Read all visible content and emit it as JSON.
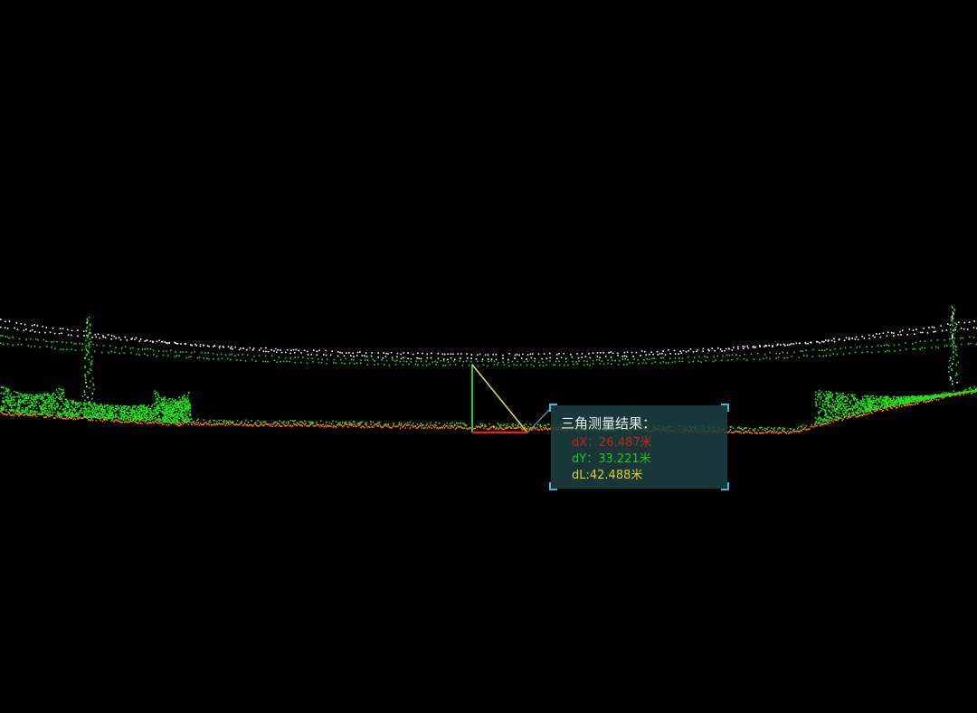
{
  "measurement": {
    "title": "三角测量结果：",
    "dx": "dX：26.487米",
    "dy": "dY：33.221米",
    "dl": "dL:42.488米"
  },
  "colors": {
    "background": "#000000",
    "ground": "#ff7a10",
    "vegetation": "#22e01a",
    "wire": "#ffffff",
    "dx_line": "#e02020",
    "dy_line": "#22d022",
    "dl_line": "#e8e030",
    "leader": "#4fb3d4"
  }
}
